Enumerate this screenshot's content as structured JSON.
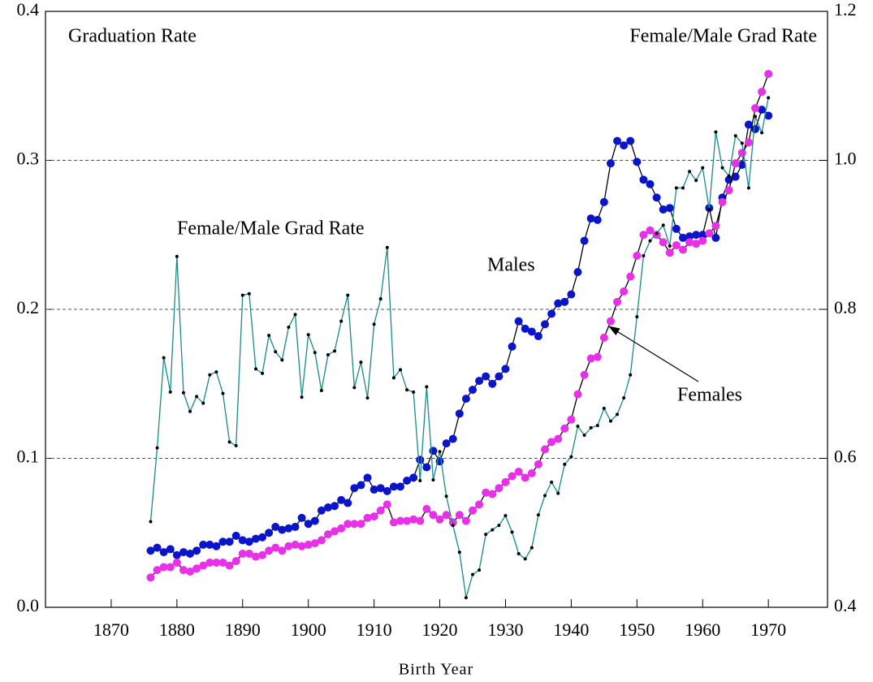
{
  "chart_data": {
    "type": "line",
    "x_label": "Birth Year",
    "annotations": [
      "Graduation Rate",
      "Female/Male Grad Rate",
      "Female/Male Grad Rate",
      "Males",
      "Females"
    ],
    "x": [
      1876,
      1877,
      1878,
      1879,
      1880,
      1881,
      1882,
      1883,
      1884,
      1885,
      1886,
      1887,
      1888,
      1889,
      1890,
      1891,
      1892,
      1893,
      1894,
      1895,
      1896,
      1897,
      1898,
      1899,
      1900,
      1901,
      1902,
      1903,
      1904,
      1905,
      1906,
      1907,
      1908,
      1909,
      1910,
      1911,
      1912,
      1913,
      1914,
      1915,
      1916,
      1917,
      1918,
      1919,
      1920,
      1921,
      1922,
      1923,
      1924,
      1925,
      1926,
      1927,
      1928,
      1929,
      1930,
      1931,
      1932,
      1933,
      1934,
      1935,
      1936,
      1937,
      1938,
      1939,
      1940,
      1941,
      1942,
      1943,
      1944,
      1945,
      1946,
      1947,
      1948,
      1949,
      1950,
      1951,
      1952,
      1953,
      1954,
      1955,
      1956,
      1957,
      1958,
      1959,
      1960,
      1961,
      1962,
      1963,
      1964,
      1965,
      1966,
      1967,
      1968,
      1969,
      1970
    ],
    "series": [
      {
        "name": "Males",
        "color": "#0a14c8",
        "axis": "y",
        "values": [
          0.038,
          0.04,
          0.037,
          0.039,
          0.035,
          0.037,
          0.036,
          0.038,
          0.042,
          0.042,
          0.041,
          0.044,
          0.044,
          0.048,
          0.045,
          0.044,
          0.046,
          0.047,
          0.05,
          0.054,
          0.052,
          0.053,
          0.054,
          0.06,
          0.056,
          0.058,
          0.065,
          0.067,
          0.068,
          0.072,
          0.07,
          0.08,
          0.082,
          0.087,
          0.079,
          0.08,
          0.078,
          0.081,
          0.081,
          0.085,
          0.087,
          0.099,
          0.094,
          0.105,
          0.098,
          0.11,
          0.113,
          0.13,
          0.14,
          0.146,
          0.152,
          0.155,
          0.15,
          0.155,
          0.16,
          0.175,
          0.192,
          0.187,
          0.185,
          0.182,
          0.19,
          0.197,
          0.204,
          0.205,
          0.21,
          0.225,
          0.246,
          0.261,
          0.26,
          0.272,
          0.298,
          0.313,
          0.31,
          0.313,
          0.299,
          0.287,
          0.284,
          0.275,
          0.267,
          0.268,
          0.254,
          0.248,
          0.249,
          0.25,
          0.25,
          0.268,
          0.248,
          0.275,
          0.287,
          0.289,
          0.297,
          0.324,
          0.321,
          0.334,
          0.33
        ]
      },
      {
        "name": "Females",
        "color": "#e830e8",
        "axis": "y",
        "values": [
          0.02,
          0.025,
          0.027,
          0.027,
          0.03,
          0.025,
          0.024,
          0.026,
          0.028,
          0.03,
          0.03,
          0.03,
          0.028,
          0.031,
          0.036,
          0.036,
          0.034,
          0.035,
          0.038,
          0.04,
          0.038,
          0.041,
          0.042,
          0.041,
          0.042,
          0.043,
          0.045,
          0.049,
          0.051,
          0.053,
          0.056,
          0.056,
          0.056,
          0.06,
          0.061,
          0.065,
          0.069,
          0.057,
          0.058,
          0.058,
          0.059,
          0.058,
          0.066,
          0.062,
          0.059,
          0.062,
          0.057,
          0.062,
          0.058,
          0.065,
          0.069,
          0.077,
          0.076,
          0.08,
          0.084,
          0.088,
          0.091,
          0.087,
          0.09,
          0.096,
          0.106,
          0.111,
          0.113,
          0.12,
          0.126,
          0.143,
          0.156,
          0.167,
          0.168,
          0.181,
          0.192,
          0.205,
          0.212,
          0.222,
          0.236,
          0.25,
          0.253,
          0.25,
          0.245,
          0.238,
          0.243,
          0.24,
          0.245,
          0.244,
          0.246,
          0.251,
          0.256,
          0.272,
          0.28,
          0.298,
          0.305,
          0.312,
          0.335,
          0.346,
          0.358
        ]
      },
      {
        "name": "Female/Male Grad Rate",
        "color": "#1a8a8a",
        "axis": "y2",
        "values": [
          0.515,
          0.614,
          0.735,
          0.689,
          0.871,
          0.688,
          0.663,
          0.683,
          0.674,
          0.712,
          0.716,
          0.687,
          0.622,
          0.617,
          0.819,
          0.821,
          0.72,
          0.714,
          0.765,
          0.743,
          0.732,
          0.776,
          0.793,
          0.682,
          0.766,
          0.742,
          0.691,
          0.739,
          0.744,
          0.784,
          0.819,
          0.695,
          0.729,
          0.681,
          0.78,
          0.814,
          0.883,
          0.708,
          0.719,
          0.692,
          0.689,
          0.57,
          0.696,
          0.571,
          0.609,
          0.549,
          0.51,
          0.474,
          0.413,
          0.444,
          0.45,
          0.498,
          0.504,
          0.51,
          0.523,
          0.501,
          0.472,
          0.465,
          0.48,
          0.524,
          0.55,
          0.568,
          0.553,
          0.592,
          0.602,
          0.643,
          0.631,
          0.641,
          0.644,
          0.667,
          0.65,
          0.659,
          0.681,
          0.712,
          0.79,
          0.872,
          0.892,
          0.902,
          0.913,
          0.885,
          0.963,
          0.963,
          0.985,
          0.973,
          0.99,
          0.934,
          1.038,
          0.99,
          0.979,
          1.033,
          1.023,
          0.963,
          1.059,
          1.037,
          1.084
        ]
      }
    ],
    "xlim": [
      1860,
      1979
    ],
    "xticks": [
      1870,
      1880,
      1890,
      1900,
      1910,
      1920,
      1930,
      1940,
      1950,
      1960,
      1970
    ],
    "ylim": [
      0,
      0.4
    ],
    "yticks": [
      {
        "value": 0,
        "label": "0.0"
      },
      0.1,
      0.2,
      0.3,
      0.4
    ],
    "y2lim": [
      0.4,
      1.2
    ],
    "y2ticks": [
      0.4,
      0.6,
      0.8,
      {
        "value": 1.0,
        "label": "1.0"
      },
      1.2
    ],
    "grid": true
  }
}
